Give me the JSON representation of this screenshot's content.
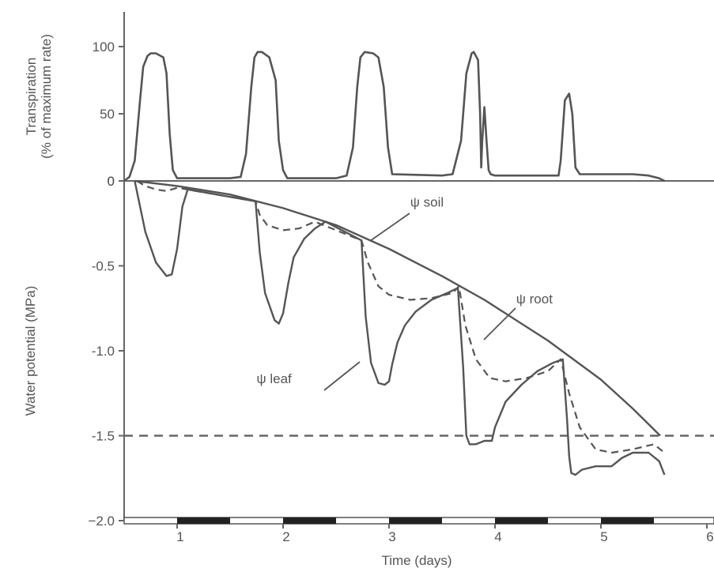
{
  "chart_data": [
    {
      "type": "line",
      "ylabel_line1": "Transpiration",
      "ylabel_line2": "(% of maximum rate)",
      "xlim": [
        0.5,
        6
      ],
      "ylim": [
        0,
        100
      ],
      "y_ticks": [
        0,
        50,
        100
      ],
      "y_tick_labels": [
        "0",
        "50",
        "100"
      ],
      "series": [
        {
          "x": [
            0.5,
            0.55,
            0.6,
            0.65,
            0.68,
            0.72,
            0.75,
            0.8,
            0.87,
            0.9,
            0.93,
            0.96,
            1.0,
            1.5,
            1.6,
            1.65,
            1.7,
            1.73,
            1.76,
            1.8,
            1.87,
            1.93,
            1.96,
            2.0,
            2.04,
            2.5,
            2.6,
            2.66,
            2.7,
            2.73,
            2.77,
            2.85,
            2.9,
            2.95,
            2.99,
            3.03,
            3.5,
            3.6,
            3.68,
            3.73,
            3.78,
            3.8,
            3.84,
            3.86,
            3.87,
            3.88,
            3.9,
            3.92,
            3.94,
            3.96,
            4.0,
            4.5,
            4.6,
            4.62,
            4.66,
            4.7,
            4.73,
            4.76,
            4.8,
            5.0,
            5.3,
            5.45,
            5.55,
            5.6
          ],
          "y": [
            0,
            3,
            15,
            60,
            85,
            93,
            95,
            95,
            92,
            80,
            35,
            8,
            2,
            2,
            3,
            20,
            70,
            92,
            96,
            96,
            92,
            75,
            30,
            8,
            2,
            2,
            4,
            25,
            70,
            92,
            96,
            95,
            92,
            70,
            25,
            5,
            4,
            5,
            30,
            80,
            95,
            96,
            90,
            50,
            10,
            30,
            55,
            30,
            8,
            5,
            4,
            4,
            4,
            15,
            60,
            65,
            50,
            10,
            5,
            5,
            5,
            4,
            2,
            0
          ]
        }
      ]
    },
    {
      "type": "line",
      "xlabel": "Time (days)",
      "ylabel": "Water potential (MPa)",
      "xlim": [
        0.5,
        6
      ],
      "ylim": [
        -2.0,
        0
      ],
      "x_ticks": [
        1,
        2,
        3,
        4,
        5,
        6
      ],
      "x_tick_labels": [
        "1",
        "2",
        "3",
        "4",
        "5",
        "6"
      ],
      "y_ticks": [
        0,
        -0.5,
        -1.0,
        -1.5,
        -2.0
      ],
      "y_tick_labels": [
        "0",
        "-0.5",
        "-1.0",
        "-1.5",
        "−2.0"
      ],
      "reference_line": -1.5,
      "annotations": [
        {
          "text": "ψ soil",
          "x": 3.2,
          "y": -0.15
        },
        {
          "text": "ψ root",
          "x": 4.2,
          "y": -0.72
        },
        {
          "text": "ψ leaf",
          "x": 1.75,
          "y": -1.19
        }
      ],
      "series": [
        {
          "name": "ψ soil",
          "style": "solid",
          "x": [
            0.6,
            1.0,
            1.5,
            2.0,
            2.5,
            3.0,
            3.5,
            3.9,
            4.5,
            5.0,
            5.3,
            5.56
          ],
          "y": [
            0,
            -0.03,
            -0.08,
            -0.16,
            -0.26,
            -0.4,
            -0.56,
            -0.7,
            -0.94,
            -1.17,
            -1.34,
            -1.5
          ]
        },
        {
          "name": "ψ root",
          "style": "dashed",
          "x": [
            0.62,
            0.7,
            0.8,
            0.9,
            1.0,
            1.74,
            1.78,
            1.85,
            2.0,
            2.15,
            2.3,
            2.74,
            2.8,
            2.9,
            3.0,
            3.2,
            3.4,
            3.6,
            3.66,
            3.72,
            3.82,
            3.95,
            4.1,
            4.3,
            4.5,
            4.62,
            4.7,
            4.8,
            4.95,
            5.1,
            5.3,
            5.5,
            5.6
          ],
          "y": [
            0,
            -0.03,
            -0.05,
            -0.06,
            -0.04,
            -0.12,
            -0.2,
            -0.26,
            -0.29,
            -0.28,
            -0.24,
            -0.35,
            -0.48,
            -0.62,
            -0.67,
            -0.7,
            -0.69,
            -0.66,
            -0.62,
            -0.85,
            -1.05,
            -1.16,
            -1.18,
            -1.16,
            -1.12,
            -1.05,
            -1.25,
            -1.45,
            -1.58,
            -1.6,
            -1.58,
            -1.55,
            -1.6
          ]
        },
        {
          "name": "ψ leaf",
          "style": "solid",
          "x": [
            0.6,
            0.65,
            0.7,
            0.8,
            0.9,
            0.95,
            1.0,
            1.05,
            1.1,
            1.74,
            1.78,
            1.83,
            1.92,
            1.96,
            2.0,
            2.05,
            2.1,
            2.2,
            2.3,
            2.4,
            2.74,
            2.78,
            2.83,
            2.9,
            2.96,
            3.0,
            3.03,
            3.08,
            3.15,
            3.25,
            3.4,
            3.55,
            3.65,
            3.7,
            3.73,
            3.76,
            3.82,
            3.9,
            3.97,
            4.0,
            4.1,
            4.25,
            4.4,
            4.55,
            4.64,
            4.68,
            4.7,
            4.72,
            4.76,
            4.82,
            4.95,
            5.1,
            5.2,
            5.3,
            5.45,
            5.55,
            5.6
          ],
          "y": [
            0,
            -0.15,
            -0.3,
            -0.48,
            -0.56,
            -0.55,
            -0.4,
            -0.15,
            -0.05,
            -0.12,
            -0.42,
            -0.66,
            -0.82,
            -0.84,
            -0.78,
            -0.6,
            -0.45,
            -0.34,
            -0.28,
            -0.24,
            -0.35,
            -0.8,
            -1.07,
            -1.19,
            -1.2,
            -1.18,
            -1.08,
            -0.95,
            -0.85,
            -0.77,
            -0.7,
            -0.66,
            -0.63,
            -1.1,
            -1.5,
            -1.55,
            -1.55,
            -1.53,
            -1.53,
            -1.45,
            -1.3,
            -1.2,
            -1.12,
            -1.07,
            -1.05,
            -1.4,
            -1.62,
            -1.72,
            -1.73,
            -1.7,
            -1.68,
            -1.68,
            -1.63,
            -1.6,
            -1.6,
            -1.65,
            -1.73
          ]
        }
      ]
    }
  ],
  "day_night_bar": {
    "night_intervals": [
      [
        1.0,
        1.5
      ],
      [
        2.0,
        2.5
      ],
      [
        3.0,
        3.5
      ],
      [
        4.0,
        4.5
      ],
      [
        5.0,
        5.5
      ]
    ]
  }
}
